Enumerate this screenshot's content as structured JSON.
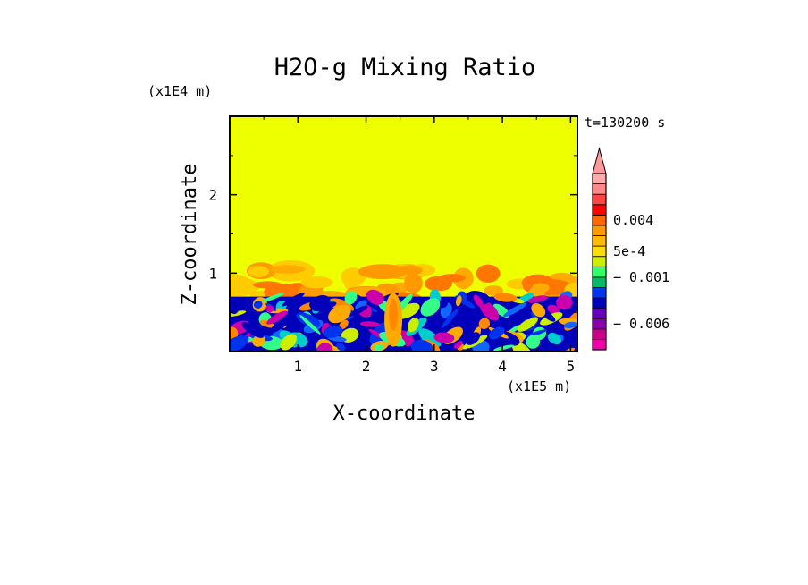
{
  "chart_data": {
    "type": "heatmap",
    "title": "H2O-g Mixing Ratio",
    "xlabel": "X-coordinate",
    "ylabel": "Z-coordinate",
    "x_scale_label": "(x1E5 m)",
    "y_scale_label": "(x1E4 m)",
    "time_label": "t=130200 s",
    "xlim": [
      0,
      5.1
    ],
    "ylim": [
      0,
      3.0
    ],
    "x_ticks": [
      1,
      2,
      3,
      4,
      5
    ],
    "y_ticks": [
      1,
      2
    ],
    "x_tick_labels": [
      "1",
      "2",
      "3",
      "4",
      "5"
    ],
    "y_tick_labels": [
      "1",
      "2"
    ],
    "background_value": 0.0,
    "boundary_layer_top": 0.7,
    "transition_top": 1.05,
    "colorbar": {
      "colors": [
        "#ee00aa",
        "#cc0088",
        "#8800aa",
        "#6600bb",
        "#0000bb",
        "#0033ee",
        "#00bb66",
        "#33ff66",
        "#ccee00",
        "#ffdd00",
        "#ffbb00",
        "#ff9900",
        "#ff6600",
        "#ff0000",
        "#ff4444",
        "#ff8888",
        "#ffaaaa"
      ],
      "labels": [
        {
          "text": "0.004",
          "value": 0.004
        },
        {
          "text": "5e-4",
          "value": 0.0005
        },
        {
          "text": "− 0.001",
          "value": -0.001
        },
        {
          "text": "− 0.006",
          "value": -0.006
        }
      ],
      "label_level_index": [
        12.5,
        9.5,
        7,
        2.5
      ]
    },
    "field_colors": {
      "upper": "#eeff00",
      "transition": [
        "#ffcc00",
        "#ffaa00",
        "#ff9900",
        "#ff7700"
      ],
      "lower": [
        "#0000bb",
        "#0033ee",
        "#1166ff",
        "#00cccc",
        "#33ff88",
        "#ccee00",
        "#ffaa00",
        "#ff8800",
        "#cc00aa"
      ]
    }
  }
}
